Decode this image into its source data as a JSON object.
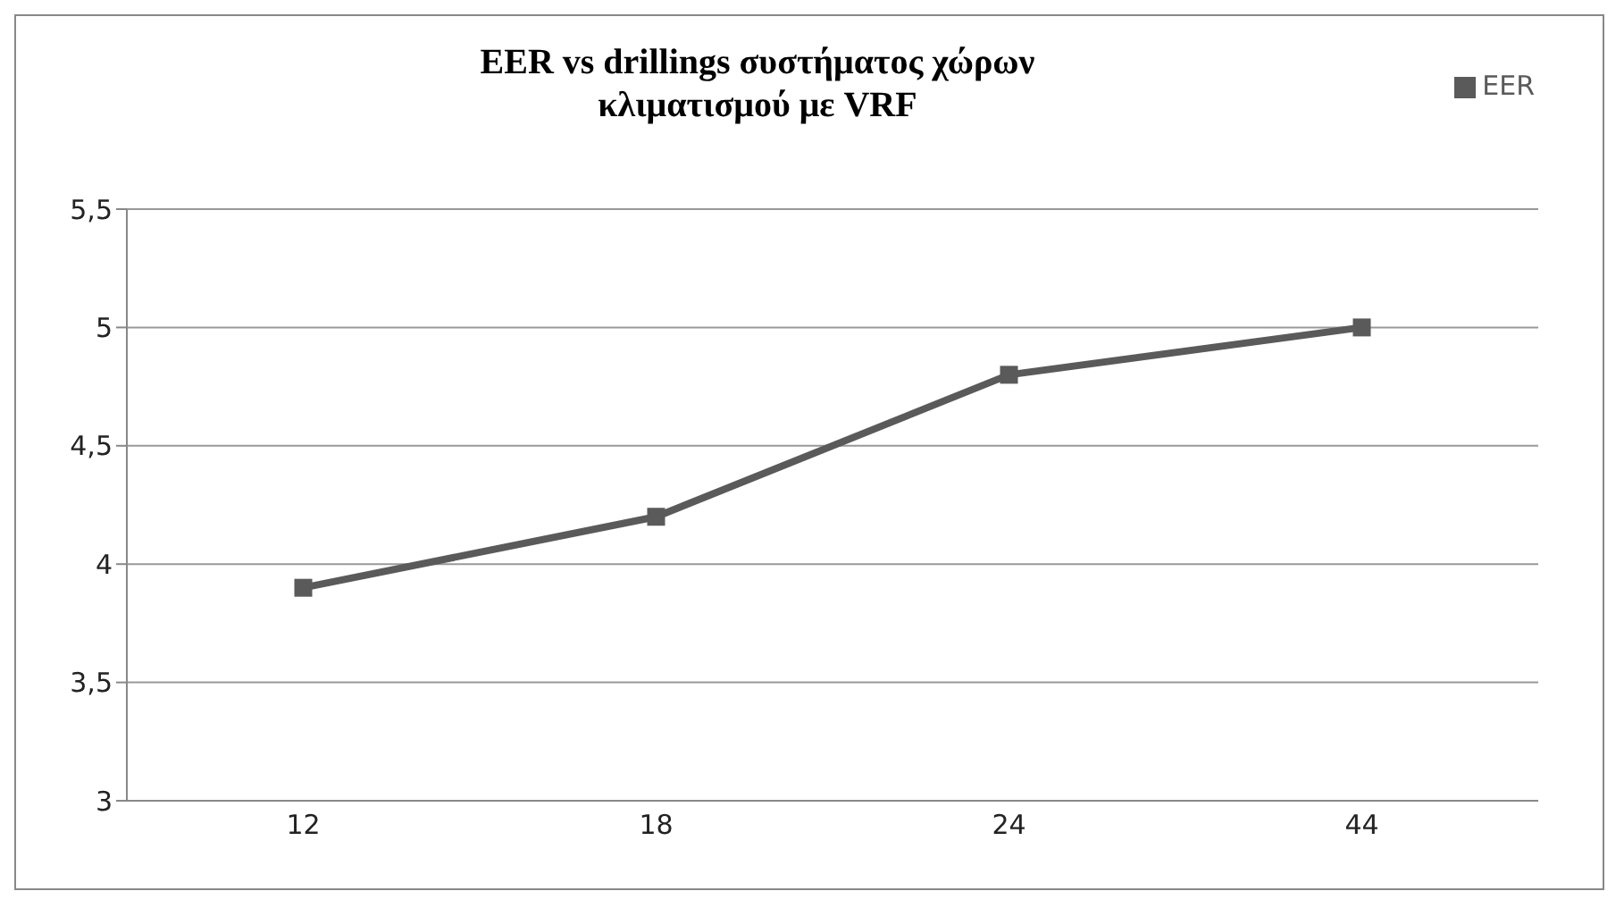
{
  "chart_data": {
    "type": "line",
    "title": "EER vs drillings συστήματος χώρων κλιματισμού με VRF",
    "categories": [
      "12",
      "18",
      "24",
      "44"
    ],
    "series": [
      {
        "name": "EER",
        "color": "#5a5a5a",
        "values": [
          3.9,
          4.2,
          4.8,
          5.0
        ]
      }
    ],
    "ylim": [
      3,
      5.5
    ],
    "yticks": [
      3,
      {
        "value": 3.5,
        "label": "3,5"
      },
      4,
      {
        "value": 4.5,
        "label": "4,5"
      },
      5,
      {
        "value": 5.5,
        "label": "5,5"
      }
    ],
    "grid": "y",
    "legend": "top right",
    "marker": "square",
    "line_style": "solid"
  }
}
